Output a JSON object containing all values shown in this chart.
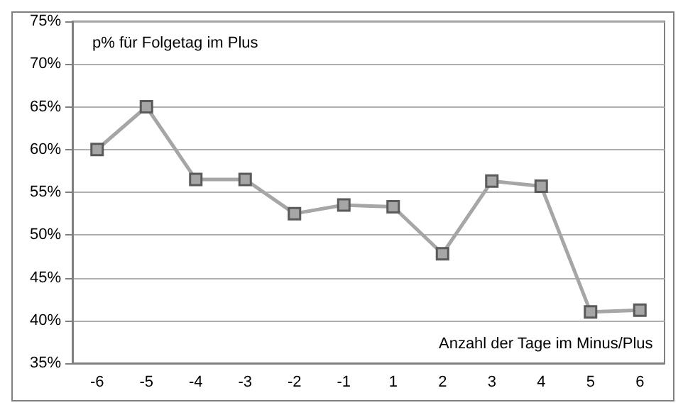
{
  "chart_data": {
    "type": "line",
    "xlabel": "Anzahl der Tage im Minus/Plus",
    "ylabel": "p% für Folgetag im Plus",
    "categories": [
      "-6",
      "-5",
      "-4",
      "-3",
      "-2",
      "-1",
      "1",
      "2",
      "3",
      "4",
      "5",
      "6"
    ],
    "series": [
      {
        "color": "#a6a6a6",
        "values": [
          60,
          65,
          56.5,
          56.5,
          52.5,
          53.5,
          53.3,
          47.8,
          56.3,
          55.7,
          41,
          41.2
        ]
      }
    ],
    "ylim": [
      35,
      75
    ],
    "yticks": [
      {
        "value": 35,
        "label": "35%"
      },
      {
        "value": 40,
        "label": "40%"
      },
      {
        "value": 45,
        "label": "45%"
      },
      {
        "value": 50,
        "label": "50%"
      },
      {
        "value": 55,
        "label": "55%"
      },
      {
        "value": 60,
        "label": "60%"
      },
      {
        "value": 65,
        "label": "65%"
      },
      {
        "value": 70,
        "label": "70%"
      },
      {
        "value": 75,
        "label": "75%"
      }
    ],
    "grid": "y",
    "marker": "square",
    "line_style": "solid"
  }
}
